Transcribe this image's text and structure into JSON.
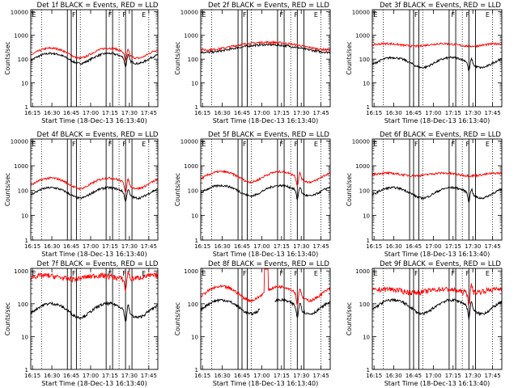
{
  "chart_data": [
    {
      "type": "line",
      "title": "Det 1f BLACK = Events, RED = LLD",
      "xlabel": "Start Time (18-Dec-13 16:13:40)",
      "ylabel": "Counts/sec",
      "yscale": "log",
      "ylim": [
        1,
        12000
      ],
      "xlim": [
        "16:13:40",
        "17:52:00"
      ],
      "xticks": [
        "16:15",
        "16:30",
        "16:45",
        "17:00",
        "17:15",
        "17:30",
        "17:45"
      ],
      "yticks": [
        "1",
        "10",
        "100",
        "1000",
        "10000"
      ],
      "series": [
        {
          "name": "BLACK = Events",
          "color": "#000000",
          "level": 120,
          "shape": "phase1"
        },
        {
          "name": "RED = LLD",
          "color": "#ff0000",
          "level": 200,
          "shape": "phase1"
        }
      ],
      "vlines_solid": [
        "16:42",
        "16:45",
        "16:49",
        "17:12",
        "17:17",
        "17:27",
        "17:32"
      ],
      "vlines_dotted": [
        "16:22",
        "16:52",
        "17:22",
        "17:45"
      ],
      "markers": [
        {
          "label": "E",
          "t": "16:14"
        },
        {
          "label": "F",
          "t": "16:45"
        },
        {
          "label": "F",
          "t": "17:13"
        },
        {
          "label": "F",
          "t": "17:24"
        },
        {
          "label": "E",
          "t": "17:39"
        }
      ]
    },
    {
      "type": "line",
      "title": "Det 2f BLACK = Events, RED = LLD",
      "xlabel": "Start Time (18-Dec-13 16:13:40)",
      "ylabel": "Counts/sec",
      "yscale": "log",
      "ylim": [
        1,
        12000
      ],
      "xlim": [
        "16:13:40",
        "17:52:00"
      ],
      "xticks": [
        "16:15",
        "16:30",
        "16:45",
        "17:00",
        "17:15",
        "17:30",
        "17:45"
      ],
      "yticks": [
        "1",
        "10",
        "100",
        "1000",
        "10000"
      ],
      "series": [
        {
          "name": "BLACK = Events",
          "color": "#000000",
          "level": 300,
          "shape": "wave"
        },
        {
          "name": "RED = LLD",
          "color": "#ff0000",
          "level": 380,
          "shape": "wave"
        }
      ],
      "vlines_solid": [
        "16:42",
        "16:45",
        "16:49",
        "17:12",
        "17:17",
        "17:27",
        "17:32"
      ],
      "vlines_dotted": [
        "16:22",
        "16:52",
        "17:22",
        "17:45"
      ],
      "markers": [
        {
          "label": "E",
          "t": "16:14"
        },
        {
          "label": "F",
          "t": "16:45"
        },
        {
          "label": "F",
          "t": "17:13"
        },
        {
          "label": "F",
          "t": "17:24"
        },
        {
          "label": "E",
          "t": "17:39"
        }
      ]
    },
    {
      "type": "line",
      "title": "Det 3f BLACK = Events, RED = LLD",
      "xlabel": "Start Time (18-Dec-13 16:13:40)",
      "ylabel": "Counts/sec",
      "yscale": "log",
      "ylim": [
        1,
        12000
      ],
      "xlim": [
        "16:13:40",
        "17:52:00"
      ],
      "xticks": [
        "16:15",
        "16:30",
        "16:45",
        "17:00",
        "17:15",
        "17:30",
        "17:45"
      ],
      "yticks": [
        "1",
        "10",
        "100",
        "1000",
        "10000"
      ],
      "series": [
        {
          "name": "BLACK = Events",
          "color": "#000000",
          "level": 80,
          "shape": "phase1"
        },
        {
          "name": "RED = LLD",
          "color": "#ff0000",
          "level": 400,
          "shape": "flat"
        }
      ],
      "vlines_solid": [
        "16:42",
        "16:45",
        "16:49",
        "17:12",
        "17:17",
        "17:27",
        "17:32"
      ],
      "vlines_dotted": [
        "16:22",
        "16:52",
        "17:22",
        "17:45"
      ],
      "markers": [
        {
          "label": "E",
          "t": "16:14"
        },
        {
          "label": "F",
          "t": "16:45"
        },
        {
          "label": "F",
          "t": "17:13"
        },
        {
          "label": "F",
          "t": "17:24"
        },
        {
          "label": "E",
          "t": "17:39"
        }
      ]
    },
    {
      "type": "line",
      "title": "Det 4f BLACK = Events, RED = LLD",
      "xlabel": "Start Time (18-Dec-13 16:13:40)",
      "ylabel": "Counts/sec",
      "yscale": "log",
      "ylim": [
        1,
        12000
      ],
      "xlim": [
        "16:13:40",
        "17:52:00"
      ],
      "xticks": [
        "16:15",
        "16:30",
        "16:45",
        "17:00",
        "17:15",
        "17:30",
        "17:45"
      ],
      "yticks": [
        "1",
        "10",
        "100",
        "1000",
        "10000"
      ],
      "series": [
        {
          "name": "BLACK = Events",
          "color": "#000000",
          "level": 90,
          "shape": "phase1"
        },
        {
          "name": "RED = LLD",
          "color": "#ff0000",
          "level": 220,
          "shape": "phase1"
        }
      ],
      "vlines_solid": [
        "16:42",
        "16:45",
        "16:49",
        "17:12",
        "17:17",
        "17:27",
        "17:32"
      ],
      "vlines_dotted": [
        "16:22",
        "16:52",
        "17:22",
        "17:45"
      ],
      "markers": [
        {
          "label": "E",
          "t": "16:14"
        },
        {
          "label": "F",
          "t": "16:45"
        },
        {
          "label": "F",
          "t": "17:13"
        },
        {
          "label": "F",
          "t": "17:24"
        },
        {
          "label": "E",
          "t": "17:39"
        }
      ]
    },
    {
      "type": "line",
      "title": "Det 5f BLACK = Events, RED = LLD",
      "xlabel": "Start Time (18-Dec-13 16:13:40)",
      "ylabel": "Counts/sec",
      "yscale": "log",
      "ylim": [
        1,
        12000
      ],
      "xlim": [
        "16:13:40",
        "17:52:00"
      ],
      "xticks": [
        "16:15",
        "16:30",
        "16:45",
        "17:00",
        "17:15",
        "17:30",
        "17:45"
      ],
      "yticks": [
        "1",
        "10",
        "100",
        "1000",
        "10000"
      ],
      "series": [
        {
          "name": "BLACK = Events",
          "color": "#000000",
          "level": 110,
          "shape": "phase1"
        },
        {
          "name": "RED = LLD",
          "color": "#ff0000",
          "level": 400,
          "shape": "phase1"
        }
      ],
      "vlines_solid": [
        "16:42",
        "16:45",
        "16:49",
        "17:12",
        "17:17",
        "17:27",
        "17:32"
      ],
      "vlines_dotted": [
        "16:22",
        "16:52",
        "17:22",
        "17:45"
      ],
      "markers": [
        {
          "label": "E",
          "t": "16:14"
        },
        {
          "label": "F",
          "t": "16:45"
        },
        {
          "label": "F",
          "t": "17:13"
        },
        {
          "label": "F",
          "t": "17:24"
        },
        {
          "label": "E",
          "t": "17:39"
        }
      ]
    },
    {
      "type": "line",
      "title": "Det 6f BLACK = Events, RED = LLD",
      "xlabel": "Start Time (18-Dec-13 16:13:40)",
      "ylabel": "Counts/sec",
      "yscale": "log",
      "ylim": [
        1,
        12000
      ],
      "xlim": [
        "16:13:40",
        "17:52:00"
      ],
      "xticks": [
        "16:15",
        "16:30",
        "16:45",
        "17:00",
        "17:15",
        "17:30",
        "17:45"
      ],
      "yticks": [
        "1",
        "10",
        "100",
        "1000",
        "10000"
      ],
      "series": [
        {
          "name": "BLACK = Events",
          "color": "#000000",
          "level": 90,
          "shape": "phase1"
        },
        {
          "name": "RED = LLD",
          "color": "#ff0000",
          "level": 450,
          "shape": "flat"
        }
      ],
      "vlines_solid": [
        "16:42",
        "16:45",
        "16:49",
        "17:12",
        "17:17",
        "17:27",
        "17:32"
      ],
      "vlines_dotted": [
        "16:22",
        "16:52",
        "17:22",
        "17:45"
      ],
      "markers": [
        {
          "label": "E",
          "t": "16:14"
        },
        {
          "label": "F",
          "t": "16:45"
        },
        {
          "label": "F",
          "t": "17:13"
        },
        {
          "label": "F",
          "t": "17:24"
        },
        {
          "label": "E",
          "t": "17:39"
        }
      ]
    },
    {
      "type": "line",
      "title": "Det 7f BLACK = Events, RED = LLD",
      "xlabel": "Start Time (18-Dec-13 16:13:40)",
      "ylabel": "Counts/sec",
      "yscale": "log",
      "ylim": [
        1,
        1200
      ],
      "xlim": [
        "16:13:40",
        "17:52:00"
      ],
      "xticks": [
        "16:15",
        "16:30",
        "16:45",
        "17:00",
        "17:15",
        "17:30",
        "17:45"
      ],
      "yticks": [
        "1",
        "10",
        "100",
        "1000"
      ],
      "series": [
        {
          "name": "BLACK = Events",
          "color": "#000000",
          "level": 70,
          "shape": "phase1"
        },
        {
          "name": "RED = LLD",
          "color": "#ff0000",
          "level": 650,
          "shape": "noisy"
        }
      ],
      "vlines_solid": [
        "16:42",
        "16:45",
        "16:49",
        "17:12",
        "17:17",
        "17:27",
        "17:32"
      ],
      "vlines_dotted": [
        "16:22",
        "16:52",
        "17:22",
        "17:45"
      ],
      "markers": [
        {
          "label": "E",
          "t": "16:14"
        },
        {
          "label": "F",
          "t": "16:45"
        },
        {
          "label": "F",
          "t": "17:13"
        },
        {
          "label": "F",
          "t": "17:24"
        },
        {
          "label": "E",
          "t": "17:39"
        }
      ]
    },
    {
      "type": "line",
      "title": "Det 8f BLACK = Events, RED = LLD",
      "xlabel": "Start Time (18-Dec-13 16:13:40)",
      "ylabel": "Counts/sec",
      "yscale": "log",
      "ylim": [
        1,
        1200
      ],
      "xlim": [
        "16:13:40",
        "17:52:00"
      ],
      "xticks": [
        "16:15",
        "16:30",
        "16:45",
        "17:00",
        "17:15",
        "17:30",
        "17:45"
      ],
      "yticks": [
        "1",
        "10",
        "100",
        "1000"
      ],
      "series": [
        {
          "name": "BLACK = Events",
          "color": "#000000",
          "level": 90,
          "shape": "gap"
        },
        {
          "name": "RED = LLD",
          "color": "#ff0000",
          "level": 230,
          "shape": "spike"
        }
      ],
      "vlines_solid": [
        "16:42",
        "16:45",
        "16:49",
        "17:12",
        "17:17",
        "17:27",
        "17:32"
      ],
      "vlines_dotted": [
        "16:22",
        "16:52",
        "17:22",
        "17:45"
      ],
      "markers": [
        {
          "label": "E",
          "t": "16:14"
        },
        {
          "label": "F",
          "t": "16:45"
        },
        {
          "label": "F",
          "t": "17:13"
        },
        {
          "label": "F",
          "t": "17:24"
        },
        {
          "label": "E",
          "t": "17:39"
        }
      ]
    },
    {
      "type": "line",
      "title": "Det 9f BLACK = Events, RED = LLD",
      "xlabel": "Start Time (18-Dec-13 16:13:40)",
      "ylabel": "Counts/sec",
      "yscale": "log",
      "ylim": [
        1,
        1200
      ],
      "xlim": [
        "16:13:40",
        "17:52:00"
      ],
      "xticks": [
        "16:15",
        "16:30",
        "16:45",
        "17:00",
        "17:15",
        "17:30",
        "17:45"
      ],
      "yticks": [
        "1",
        "10",
        "100",
        "1000"
      ],
      "series": [
        {
          "name": "BLACK = Events",
          "color": "#000000",
          "level": 90,
          "shape": "phase1"
        },
        {
          "name": "RED = LLD",
          "color": "#ff0000",
          "level": 250,
          "shape": "noisy"
        }
      ],
      "vlines_solid": [
        "16:42",
        "16:45",
        "16:49",
        "17:12",
        "17:17",
        "17:27",
        "17:32"
      ],
      "vlines_dotted": [
        "16:22",
        "16:52",
        "17:22",
        "17:45"
      ],
      "markers": [
        {
          "label": "E",
          "t": "16:14"
        },
        {
          "label": "F",
          "t": "16:45"
        },
        {
          "label": "F",
          "t": "17:13"
        },
        {
          "label": "F",
          "t": "17:24"
        },
        {
          "label": "E",
          "t": "17:39"
        }
      ]
    }
  ]
}
